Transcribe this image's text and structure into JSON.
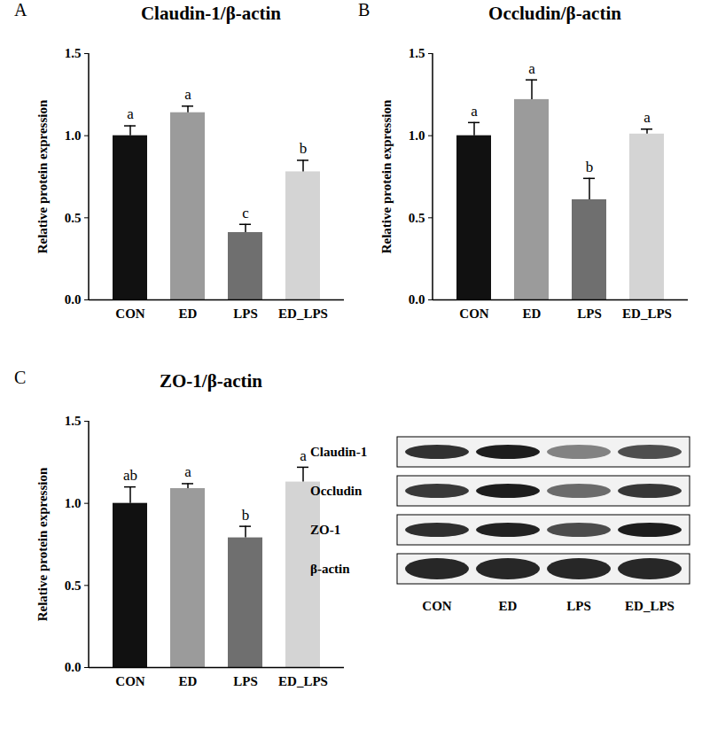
{
  "chart_data": [
    {
      "type": "bar",
      "panel": "A",
      "title": "Claudin-1/β-actin",
      "y_label": "Relative protein expression",
      "categories": [
        "CON",
        "ED",
        "LPS",
        "ED_LPS"
      ],
      "values": [
        1.0,
        1.14,
        0.41,
        0.78
      ],
      "errors": [
        0.06,
        0.04,
        0.05,
        0.07
      ],
      "annotations": [
        "a",
        "a",
        "c",
        "b"
      ],
      "colors": [
        "#111111",
        "#9b9b9b",
        "#6f6f6f",
        "#d4d4d4"
      ],
      "ylim": [
        0,
        1.5
      ],
      "yticks": [
        {
          "value": 0,
          "label": "0.0"
        },
        0.5,
        {
          "value": 1,
          "label": "1.0"
        },
        1.5
      ]
    },
    {
      "type": "bar",
      "panel": "B",
      "title": "Occludin/β-actin",
      "y_label": "Relative protein expression",
      "categories": [
        "CON",
        "ED",
        "LPS",
        "ED_LPS"
      ],
      "values": [
        1.0,
        1.22,
        0.61,
        1.01
      ],
      "errors": [
        0.08,
        0.12,
        0.13,
        0.03
      ],
      "annotations": [
        "a",
        "a",
        "b",
        "a"
      ],
      "colors": [
        "#111111",
        "#9b9b9b",
        "#6f6f6f",
        "#d4d4d4"
      ],
      "ylim": [
        0,
        1.5
      ],
      "yticks": [
        {
          "value": 0,
          "label": "0.0"
        },
        0.5,
        {
          "value": 1,
          "label": "1.0"
        },
        1.5
      ]
    },
    {
      "type": "bar",
      "panel": "C",
      "title": "ZO-1/β-actin",
      "y_label": "Relative protein expression",
      "categories": [
        "CON",
        "ED",
        "LPS",
        "ED_LPS"
      ],
      "values": [
        1.0,
        1.09,
        0.79,
        1.13
      ],
      "errors": [
        0.1,
        0.03,
        0.07,
        0.09
      ],
      "annotations": [
        "ab",
        "a",
        "b",
        "a"
      ],
      "colors": [
        "#111111",
        "#9b9b9b",
        "#6f6f6f",
        "#d4d4d4"
      ],
      "ylim": [
        0,
        1.5
      ],
      "yticks": [
        {
          "value": 0,
          "label": "0.0"
        },
        0.5,
        {
          "value": 1,
          "label": "1.0"
        },
        1.5
      ]
    }
  ],
  "blot": {
    "rows": [
      "Claudin-1",
      "Occludin",
      "ZO-1",
      "β-actin"
    ],
    "lanes": [
      "CON",
      "ED",
      "LPS",
      "ED_LPS"
    ]
  }
}
